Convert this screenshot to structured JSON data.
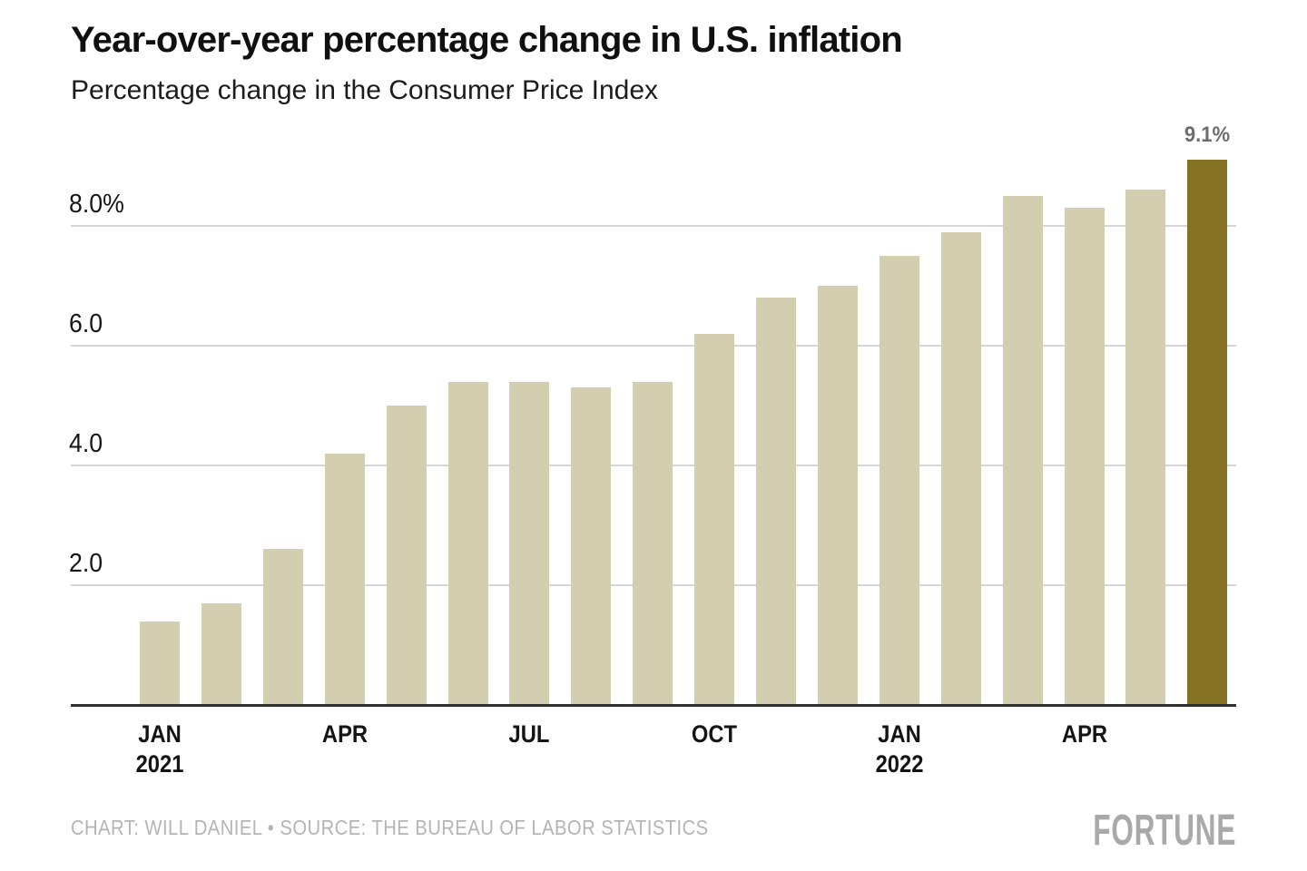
{
  "header": {
    "title": "Year-over-year percentage change in U.S. inflation",
    "subtitle": "Percentage change in the Consumer Price Index"
  },
  "footer": {
    "attribution": "CHART: WILL DANIEL • SOURCE: THE BUREAU OF LABOR STATISTICS",
    "brand": "FORTUNE"
  },
  "colors": {
    "bar": "#d4ceb1",
    "bar_highlight": "#857223",
    "gridline": "#d6d6d6",
    "axis": "#2e2e2e",
    "annotation": "#6d6d6d",
    "title_text": "#101010",
    "muted_text": "#b4b4b4"
  },
  "chart_data": {
    "type": "bar",
    "title": "Year-over-year percentage change in U.S. inflation",
    "subtitle": "Percentage change in the Consumer Price Index",
    "unit": "percent",
    "categories": [
      "Jan 2021",
      "Feb 2021",
      "Mar 2021",
      "Apr 2021",
      "May 2021",
      "Jun 2021",
      "Jul 2021",
      "Aug 2021",
      "Sep 2021",
      "Oct 2021",
      "Nov 2021",
      "Dec 2021",
      "Jan 2022",
      "Feb 2022",
      "Mar 2022",
      "Apr 2022",
      "May 2022",
      "Jun 2022"
    ],
    "values": [
      1.4,
      1.7,
      2.6,
      4.2,
      5.0,
      5.4,
      5.4,
      5.3,
      5.4,
      6.2,
      6.8,
      7.0,
      7.5,
      7.9,
      8.5,
      8.3,
      8.6,
      9.1
    ],
    "highlight_index": 17,
    "annotation": {
      "index": 17,
      "text": "9.1%"
    },
    "y_ticks": [
      {
        "value": 2,
        "label": "2.0"
      },
      {
        "value": 4,
        "label": "4.0"
      },
      {
        "value": 6,
        "label": "6.0"
      },
      {
        "value": 8,
        "label": "8.0%"
      }
    ],
    "x_ticks": [
      {
        "index": 0,
        "line1": "JAN",
        "line2": "2021"
      },
      {
        "index": 3,
        "line1": "APR"
      },
      {
        "index": 6,
        "line1": "JUL"
      },
      {
        "index": 9,
        "line1": "OCT"
      },
      {
        "index": 12,
        "line1": "JAN",
        "line2": "2022"
      },
      {
        "index": 15,
        "line1": "APR"
      }
    ],
    "ylim": [
      0,
      9.65
    ],
    "grid": true,
    "legend": false
  }
}
